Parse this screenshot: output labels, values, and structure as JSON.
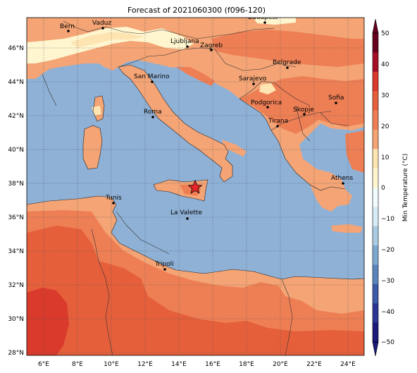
{
  "title": "Forecast of 2021060300 (f096-120)",
  "colors": {
    "sea": "#8fb1d6",
    "land_15": "#f4a475",
    "land_20": "#ee7f55",
    "land_25": "#e55f3b",
    "land_30": "#d93a2b",
    "cool_5": "#fff6cf",
    "border": "#333333",
    "star": "#e8262a"
  },
  "map": {
    "lon_ticks": [
      "6°E",
      "8°E",
      "10°E",
      "12°E",
      "14°E",
      "16°E",
      "18°E",
      "20°E",
      "22°E",
      "24°E"
    ],
    "lat_ticks": [
      "46°N",
      "44°N",
      "42°N",
      "40°N",
      "38°N",
      "36°N",
      "34°N",
      "32°N",
      "30°N",
      "28°N"
    ],
    "cities": [
      {
        "name": "Bern"
      },
      {
        "name": "Vaduz"
      },
      {
        "name": "Budapest"
      },
      {
        "name": "Ljubljana"
      },
      {
        "name": "Zagreb"
      },
      {
        "name": "Belgrade"
      },
      {
        "name": "San Marino"
      },
      {
        "name": "Sarajevo"
      },
      {
        "name": "Sofia"
      },
      {
        "name": "Roma"
      },
      {
        "name": "Podgorica"
      },
      {
        "name": "Skopje"
      },
      {
        "name": "Tirana"
      },
      {
        "name": "Athens"
      },
      {
        "name": "Tunis"
      },
      {
        "name": "La Valette"
      },
      {
        "name": "Tripoli"
      }
    ],
    "marker": "star-marker"
  },
  "colorbar": {
    "label": "Min Temperature (°C)",
    "ticks": [
      "50",
      "40",
      "30",
      "20",
      "10",
      "0",
      "−10",
      "−20",
      "−30",
      "−40",
      "−50"
    ],
    "levels": [
      "#67001f",
      "#a50f26",
      "#d93a2b",
      "#e55f3b",
      "#ee7f55",
      "#f4a475",
      "#fee4b0",
      "#fff6cf",
      "#f2fbfd",
      "#d7ecf4",
      "#a9cce3",
      "#7fa8cf",
      "#5b84bc",
      "#3d5aa8",
      "#2b3594",
      "#1b1a7a"
    ]
  }
}
